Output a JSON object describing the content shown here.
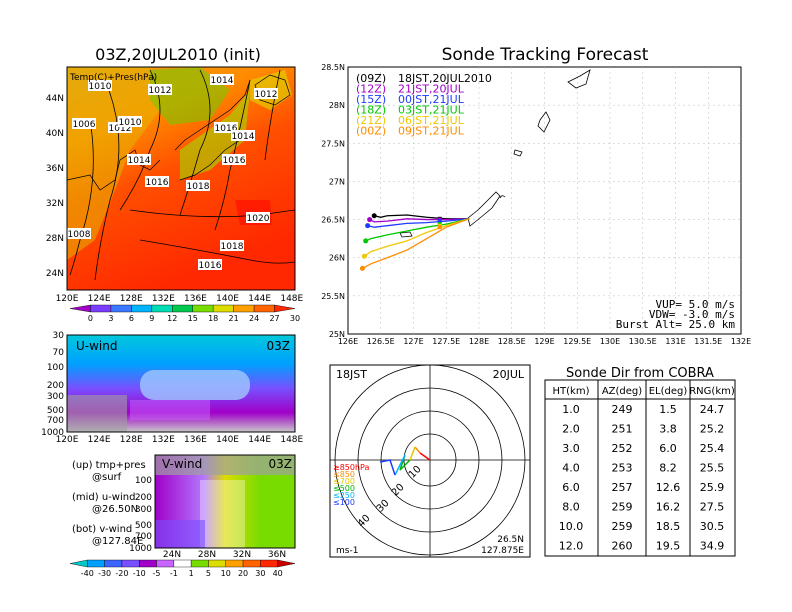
{
  "panels": {
    "map": {
      "title": "03Z,20JUL2010 (init)",
      "overlay_label": "Temp(C)+Pres(hPa)",
      "lat_ticks": [
        "44N",
        "40N",
        "36N",
        "32N",
        "28N",
        "24N"
      ],
      "lon_ticks": [
        "120E",
        "124E",
        "128E",
        "132E",
        "136E",
        "140E",
        "144E",
        "148E"
      ],
      "isobars": [
        "1010",
        "1012",
        "1014",
        "1012",
        "1006",
        "1012",
        "1016",
        "1014",
        "1014",
        "1016",
        "1016",
        "1018",
        "1020",
        "1018",
        "1016",
        "1008",
        "1010"
      ],
      "colorbar_ticks": [
        "0",
        "3",
        "6",
        "9",
        "12",
        "15",
        "18",
        "21",
        "24",
        "27",
        "30"
      ],
      "colorbar_colors": [
        "#a000c8",
        "#7a3cff",
        "#3c78ff",
        "#00b4ff",
        "#00dcb4",
        "#00c850",
        "#78dc00",
        "#dcdc00",
        "#ffa000",
        "#ff6400",
        "#ff2800"
      ]
    },
    "uwind": {
      "label": "U-wind",
      "time": "03Z",
      "y_ticks": [
        "30",
        "70",
        "100",
        "200",
        "300",
        "500",
        "700",
        "1000"
      ],
      "x_ticks": [
        "120E",
        "124E",
        "128E",
        "132E",
        "136E",
        "140E",
        "144E",
        "148E"
      ]
    },
    "legend_text": {
      "up": "(up) tmp+pres",
      "up2": "@surf",
      "mid": "(mid) u-wind",
      "mid2": "@26.50N",
      "bot": "(bot) v-wind",
      "bot2": "@127.84E"
    },
    "vwind": {
      "label": "V-wind",
      "time": "03Z",
      "y_ticks": [
        "100",
        "200",
        "300",
        "500",
        "700",
        "1000"
      ],
      "x_ticks": [
        "24N",
        "28N",
        "32N",
        "36N"
      ],
      "colorbar_ticks": [
        "-40",
        "-30",
        "-20",
        "-10",
        "-5",
        "-1",
        "1",
        "5",
        "10",
        "20",
        "30",
        "40"
      ],
      "colorbar_colors": [
        "#00c8c8",
        "#00a0ff",
        "#3c64ff",
        "#7850ff",
        "#a000c8",
        "#c864ff",
        "#ffffff",
        "#78dc00",
        "#dcdc00",
        "#ffa000",
        "#ff6400",
        "#ff2800",
        "#c80000"
      ]
    },
    "tracking": {
      "title": "Sonde Tracking Forecast",
      "legend": [
        {
          "tag": "(09Z)",
          "text": "18JST,20JUL2010",
          "color": "#000000"
        },
        {
          "tag": "(12Z)",
          "text": "21JST,20JUL",
          "color": "#a000c8"
        },
        {
          "tag": "(15Z)",
          "text": "00JST,21JUL",
          "color": "#1e3cff"
        },
        {
          "tag": "(18Z)",
          "text": "03JST,21JUL",
          "color": "#00c800"
        },
        {
          "tag": "(21Z)",
          "text": "06JST,21JUL",
          "color": "#f0c800"
        },
        {
          "tag": "(00Z)",
          "text": "09JST,21JUL",
          "color": "#ff8c00"
        }
      ],
      "lat_ticks": [
        "28.5N",
        "28N",
        "27.5N",
        "27N",
        "26.5N",
        "26N",
        "25.5N",
        "25N"
      ],
      "lon_ticks": [
        "126E",
        "126.5E",
        "127E",
        "127.5E",
        "128E",
        "128.5E",
        "129E",
        "129.5E",
        "130E",
        "130.5E",
        "131E",
        "131.5E",
        "132E"
      ],
      "vup": "VUP=  5.0  m/s",
      "vdw": "VDW= -3.0  m/s",
      "burst": "Burst Alt=  25.0  km"
    },
    "polar": {
      "time_label": "18JST",
      "date_label": "20JUL",
      "ring_labels": [
        "10",
        "20",
        "30",
        "40"
      ],
      "levels": [
        {
          "text": "≥850hPa",
          "color": "#ff0000"
        },
        {
          "text": "≤850",
          "color": "#ff8c00"
        },
        {
          "text": "≤700",
          "color": "#e6c800"
        },
        {
          "text": "≤500",
          "color": "#00b400"
        },
        {
          "text": "≤250",
          "color": "#00b4ff"
        },
        {
          "text": "≤100",
          "color": "#1e3cff"
        }
      ],
      "lat": "26.5N",
      "lon": "127.875E",
      "units": "ms-1"
    }
  },
  "chart_data": [
    {
      "type": "line",
      "title": "Sonde Tracking Forecast",
      "xlabel": "",
      "ylabel": "",
      "xlim": [
        126,
        132
      ],
      "ylim": [
        25,
        28.5
      ],
      "series": [
        {
          "name": "(09Z) 18JST,20JUL2010",
          "x": [
            127.85,
            127.5,
            127.2,
            126.9,
            126.6,
            126.5,
            126.4
          ],
          "y": [
            26.51,
            26.51,
            26.53,
            26.56,
            26.55,
            26.53,
            26.55
          ]
        },
        {
          "name": "(12Z) 21JST,20JUL",
          "x": [
            127.85,
            127.5,
            127.2,
            126.9,
            126.6,
            126.4,
            126.33
          ],
          "y": [
            26.51,
            26.5,
            26.5,
            26.51,
            26.48,
            26.47,
            26.5
          ]
        },
        {
          "name": "(15Z) 00JST,21JUL",
          "x": [
            127.85,
            127.5,
            127.2,
            126.9,
            126.6,
            126.4,
            126.3
          ],
          "y": [
            26.51,
            26.48,
            26.46,
            26.45,
            26.42,
            26.4,
            26.42
          ]
        },
        {
          "name": "(18Z) 03JST,21JUL",
          "x": [
            127.85,
            127.5,
            127.2,
            126.9,
            126.6,
            126.35,
            126.27
          ],
          "y": [
            26.51,
            26.44,
            26.4,
            26.35,
            26.3,
            26.25,
            26.22
          ]
        },
        {
          "name": "(21Z) 06JST,21JUL",
          "x": [
            127.85,
            127.5,
            127.2,
            126.9,
            126.6,
            126.35,
            126.25
          ],
          "y": [
            26.51,
            26.42,
            26.33,
            26.22,
            26.15,
            26.08,
            26.02
          ]
        },
        {
          "name": "(00Z) 09JST,21JUL",
          "x": [
            127.85,
            127.5,
            127.2,
            126.9,
            126.6,
            126.35,
            126.22
          ],
          "y": [
            26.51,
            26.4,
            26.25,
            26.1,
            26.0,
            25.92,
            25.86
          ]
        }
      ]
    },
    {
      "type": "table",
      "title": "Sonde Dir from COBRA",
      "columns": [
        "HT(km)",
        "AZ(deg)",
        "EL(deg)",
        "RNG(km)"
      ],
      "rows": [
        [
          "1.0",
          "249",
          "1.5",
          "24.7"
        ],
        [
          "2.0",
          "251",
          "3.8",
          "25.2"
        ],
        [
          "3.0",
          "252",
          "6.0",
          "25.4"
        ],
        [
          "4.0",
          "253",
          "8.2",
          "25.5"
        ],
        [
          "6.0",
          "257",
          "12.6",
          "25.9"
        ],
        [
          "8.0",
          "259",
          "16.2",
          "27.5"
        ],
        [
          "10.0",
          "259",
          "18.5",
          "30.5"
        ],
        [
          "12.0",
          "260",
          "19.5",
          "34.9"
        ]
      ]
    }
  ]
}
